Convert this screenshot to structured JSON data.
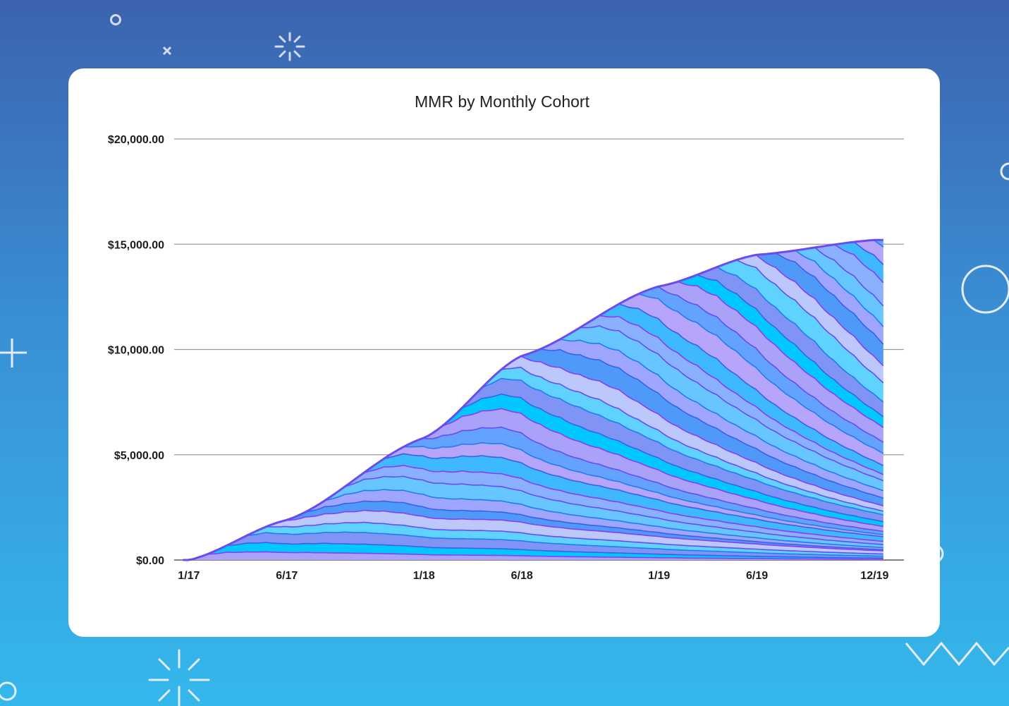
{
  "chart_data": {
    "type": "area",
    "stacked": true,
    "title": "MMR by Monthly Cohort",
    "xlabel": "",
    "ylabel": "",
    "ylim": [
      0,
      20000
    ],
    "y_ticks": [
      "$0.00",
      "$5,000.00",
      "$10,000.00",
      "$15,000.00",
      "$20,000.00"
    ],
    "y_tick_values": [
      0,
      5000,
      10000,
      15000,
      20000
    ],
    "x_ticks": [
      "1/17",
      "6/17",
      "1/18",
      "6/18",
      "1/19",
      "6/19",
      "12/19"
    ],
    "x_tick_months": [
      0,
      5,
      12,
      17,
      24,
      29,
      35
    ],
    "x_range_months": [
      -0.75,
      36.5
    ],
    "grid": "horizontal",
    "legend": "none",
    "months": [
      "1/17",
      "2/17",
      "3/17",
      "4/17",
      "5/17",
      "6/17",
      "7/17",
      "8/17",
      "9/17",
      "10/17",
      "11/17",
      "12/17",
      "1/18",
      "2/18",
      "3/18",
      "4/18",
      "5/18",
      "6/18",
      "7/18",
      "8/18",
      "9/18",
      "10/18",
      "11/18",
      "12/18",
      "1/19",
      "2/19",
      "3/19",
      "4/19",
      "5/19",
      "6/19",
      "7/19",
      "8/19",
      "9/19",
      "10/19",
      "11/19",
      "12/19"
    ],
    "series_count": 36,
    "series_description": "One stacked band per monthly cohort (36 cohorts, 1/17 to 12/19), each starting at its cohort month.",
    "total_mmr": [
      {
        "x": "1/17",
        "y": 0
      },
      {
        "x": "6/17",
        "y": 1900
      },
      {
        "x": "1/18",
        "y": 5800
      },
      {
        "x": "6/18",
        "y": 9700
      },
      {
        "x": "1/19",
        "y": 13000
      },
      {
        "x": "6/19",
        "y": 14500
      },
      {
        "x": "12/19",
        "y": 15200
      }
    ],
    "band_palette": [
      "#a9a2f8",
      "#00c8ff",
      "#7f94f5",
      "#5fd2ff",
      "#bcc8fb",
      "#4f9af9",
      "#9fa6ff",
      "#67c5ff",
      "#8ab1ff",
      "#3eb8ff",
      "#b7a4fb",
      "#64a2ff"
    ],
    "line_palette": [
      "#8b3df0",
      "#3f5ee8",
      "#1f7df0",
      "#6a4bf0"
    ]
  }
}
